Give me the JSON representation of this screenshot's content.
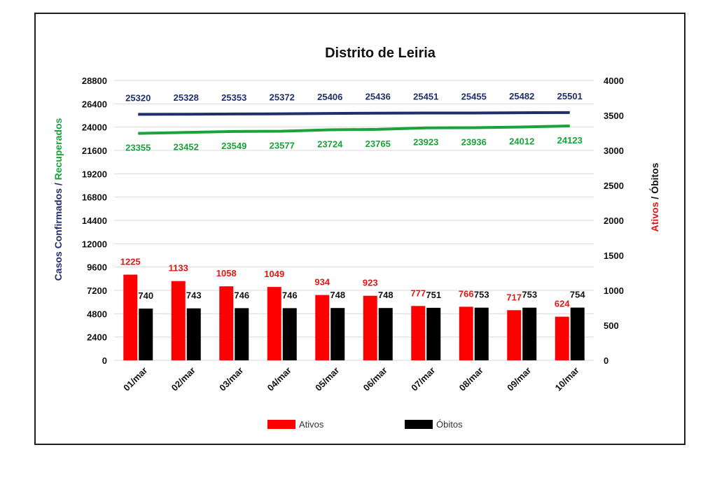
{
  "chart_data": {
    "type": "bar",
    "title": "Distrito de Leiria",
    "categories": [
      "01/mar",
      "02/mar",
      "03/mar",
      "04/mar",
      "05/mar",
      "06/mar",
      "07/mar",
      "08/mar",
      "09/mar",
      "10/mar"
    ],
    "left_axis": {
      "label_part1": "Casos Confirmados /",
      "label_part2": " Recuperados",
      "ticks": [
        "0",
        "2400",
        "4800",
        "7200",
        "9600",
        "12000",
        "14400",
        "16800",
        "19200",
        "21600",
        "24000",
        "26400",
        "28800"
      ],
      "ylim": [
        0,
        28800
      ]
    },
    "right_axis": {
      "label_part1": "Ativos",
      "label_part2": " / Óbitos",
      "ticks": [
        "0",
        "500",
        "1000",
        "1500",
        "2000",
        "2500",
        "3000",
        "3500",
        "4000"
      ],
      "ylim": [
        0,
        4000
      ]
    },
    "series": [
      {
        "name": "Casos Confirmados",
        "kind": "line",
        "axis": "left",
        "color": "#1f2f6b",
        "values": [
          25320,
          25328,
          25353,
          25372,
          25406,
          25436,
          25451,
          25455,
          25482,
          25501
        ]
      },
      {
        "name": "Recuperados",
        "kind": "line",
        "axis": "left",
        "color": "#1aa33a",
        "values": [
          23355,
          23452,
          23549,
          23577,
          23724,
          23765,
          23923,
          23936,
          24012,
          24123
        ]
      },
      {
        "name": "Ativos",
        "kind": "bar",
        "axis": "right",
        "color": "#ff0000",
        "values": [
          1225,
          1133,
          1058,
          1049,
          934,
          923,
          777,
          766,
          717,
          624
        ]
      },
      {
        "name": "Óbitos",
        "kind": "bar",
        "axis": "right",
        "color": "#000000",
        "values": [
          740,
          743,
          746,
          746,
          748,
          748,
          751,
          753,
          753,
          754
        ]
      }
    ],
    "legend": {
      "position": "bottom",
      "items": [
        "Ativos",
        "Óbitos"
      ]
    },
    "grid": true
  }
}
